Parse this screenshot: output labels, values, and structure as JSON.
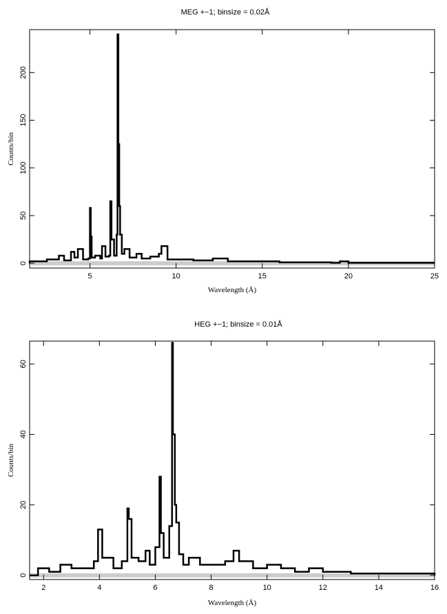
{
  "chart_data": [
    {
      "type": "line",
      "title": "MEG +−1; binsize = 0.02Å",
      "xlabel": "Wavelength (Å)",
      "ylabel": "Counts/bin",
      "xlim": [
        1.5,
        25
      ],
      "ylim": [
        -5,
        245
      ],
      "xticks": [
        5,
        10,
        15,
        20,
        25
      ],
      "yticks": [
        0,
        50,
        100,
        150,
        200
      ],
      "grid": false,
      "legend": "none",
      "series": [
        {
          "style": "histogram",
          "x": [
            1.5,
            2.0,
            2.5,
            3.0,
            3.2,
            3.5,
            3.9,
            4.1,
            4.3,
            4.6,
            4.9,
            5.0,
            5.05,
            5.1,
            5.3,
            5.6,
            5.7,
            5.9,
            6.1,
            6.18,
            6.25,
            6.4,
            6.55,
            6.6,
            6.65,
            6.7,
            6.75,
            6.85,
            7.0,
            7.3,
            7.7,
            8.0,
            8.5,
            9.0,
            9.15,
            9.5,
            10.0,
            11.0,
            12.0,
            12.13,
            13.0,
            14.0,
            15.0,
            16.0,
            17.0,
            18.0,
            19.0,
            19.5,
            20.0,
            21.0,
            22.0,
            23.0,
            24.0,
            25.0
          ],
          "y": [
            2,
            2,
            4,
            4,
            8,
            3,
            12,
            6,
            15,
            4,
            5,
            58,
            28,
            6,
            8,
            5,
            18,
            7,
            8,
            65,
            25,
            8,
            30,
            240,
            125,
            60,
            30,
            10,
            15,
            6,
            10,
            5,
            7,
            10,
            18,
            4,
            4,
            3,
            3,
            5,
            2,
            2,
            2,
            1,
            1,
            1,
            0.5,
            2,
            0.5,
            0.5,
            0.5,
            0.5,
            0.5,
            0.5
          ]
        }
      ]
    },
    {
      "type": "line",
      "title": "HEG +−1; binsize = 0.01Å",
      "xlabel": "Wavelength (Å)",
      "ylabel": "Counts/bin",
      "xlim": [
        1.5,
        16
      ],
      "ylim": [
        -1.2,
        66.5
      ],
      "xticks": [
        2,
        4,
        6,
        8,
        10,
        12,
        14,
        16
      ],
      "yticks": [
        0,
        20,
        40,
        60
      ],
      "grid": false,
      "legend": "none",
      "series": [
        {
          "style": "histogram",
          "x": [
            1.5,
            1.8,
            2.2,
            2.6,
            3.0,
            3.4,
            3.8,
            3.95,
            4.1,
            4.5,
            4.8,
            5.0,
            5.05,
            5.15,
            5.4,
            5.65,
            5.8,
            6.0,
            6.15,
            6.2,
            6.3,
            6.5,
            6.6,
            6.63,
            6.7,
            6.75,
            6.85,
            7.0,
            7.2,
            7.6,
            8.0,
            8.5,
            8.8,
            9.0,
            9.5,
            10.0,
            10.5,
            11.0,
            11.5,
            12.0,
            12.5,
            13.0,
            14.0,
            15.0,
            16.0
          ],
          "y": [
            0,
            2,
            1,
            3,
            2,
            2,
            4,
            13,
            5,
            2,
            4,
            19,
            16,
            5,
            4,
            7,
            3,
            8,
            28,
            12,
            5,
            14,
            66,
            40,
            20,
            15,
            6,
            3,
            5,
            3,
            3,
            4,
            7,
            4,
            2,
            3,
            2,
            1,
            2,
            1,
            1,
            0.5,
            0.5,
            0.5,
            0
          ]
        }
      ]
    }
  ]
}
